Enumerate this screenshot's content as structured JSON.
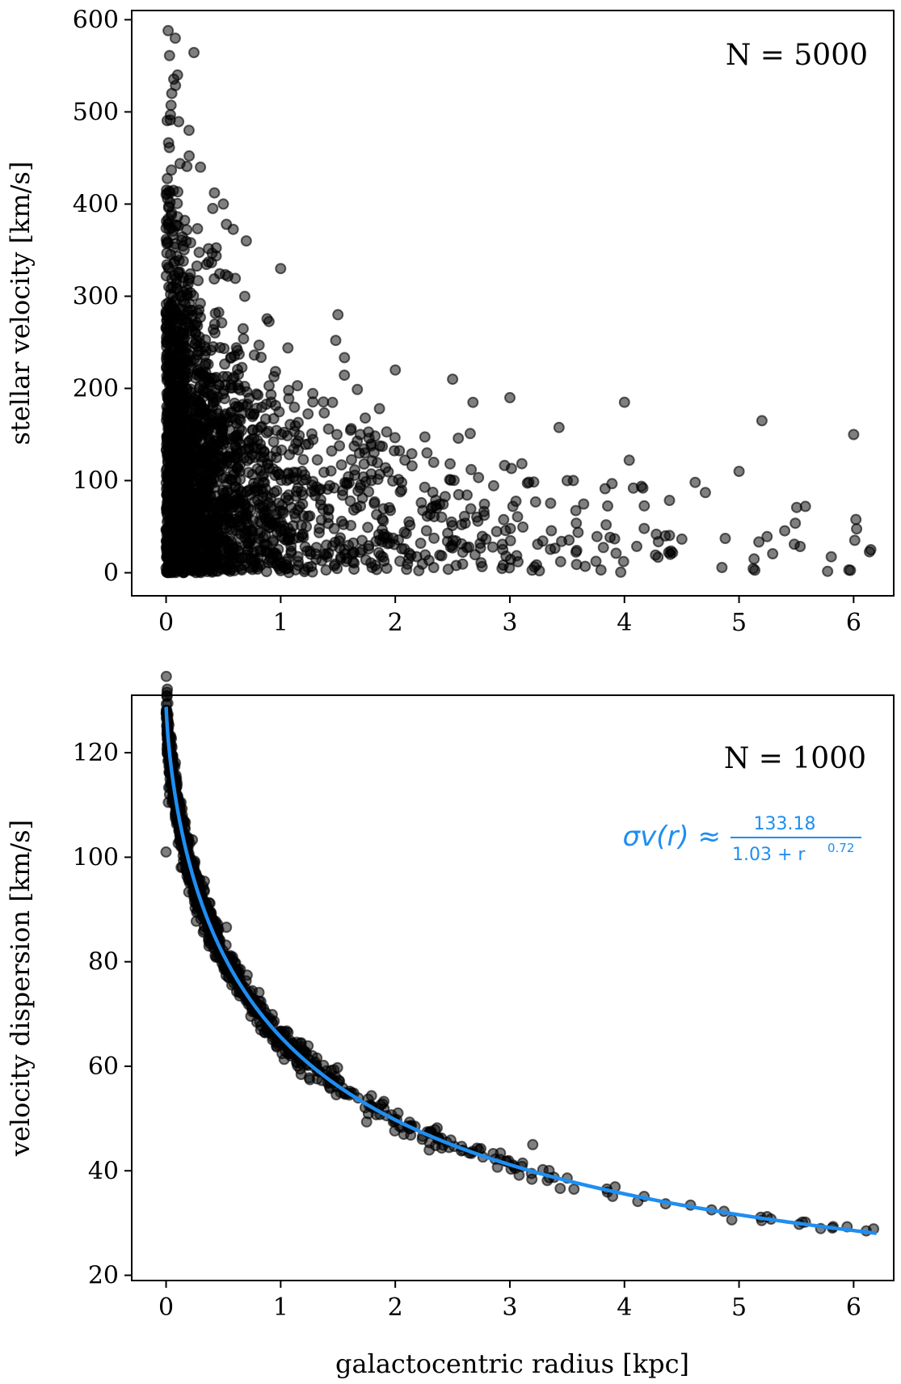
{
  "chart_data": [
    {
      "type": "scatter",
      "title": "",
      "xlabel": "",
      "ylabel": "stellar velocity [km/s]",
      "xlim": [
        -0.3,
        6.35
      ],
      "ylim": [
        -25,
        610
      ],
      "xticks": [
        0,
        1,
        2,
        3,
        4,
        5,
        6
      ],
      "yticks": [
        0,
        100,
        200,
        300,
        400,
        500,
        600
      ],
      "annotation": "N = 5000",
      "n_points": 5000,
      "marker_color": "#000000",
      "marker_alpha": 0.5,
      "trend": "velocity scatter decreases with radius; upper envelope ~580 km/s near r=0.1 falling to ~150 km/s at r=6",
      "samples": [
        {
          "x": 0.08,
          "y": 580
        },
        {
          "x": 0.1,
          "y": 540
        },
        {
          "x": 0.05,
          "y": 520
        },
        {
          "x": 0.2,
          "y": 480
        },
        {
          "x": 0.3,
          "y": 440
        },
        {
          "x": 0.5,
          "y": 400
        },
        {
          "x": 0.7,
          "y": 360
        },
        {
          "x": 1.0,
          "y": 330
        },
        {
          "x": 1.5,
          "y": 280
        },
        {
          "x": 2.0,
          "y": 220
        },
        {
          "x": 2.5,
          "y": 210
        },
        {
          "x": 3.0,
          "y": 190
        },
        {
          "x": 4.0,
          "y": 185
        },
        {
          "x": 5.2,
          "y": 165
        },
        {
          "x": 6.0,
          "y": 150
        },
        {
          "x": 0.0,
          "y": 5
        },
        {
          "x": 1.05,
          "y": 12
        },
        {
          "x": 4.4,
          "y": 20
        },
        {
          "x": 6.15,
          "y": 25
        },
        {
          "x": 3.5,
          "y": 100
        },
        {
          "x": 5.0,
          "y": 110
        }
      ]
    },
    {
      "type": "scatter",
      "title": "",
      "xlabel": "galactocentric radius [kpc]",
      "ylabel": "velocity dispersion [km/s]",
      "xlim": [
        -0.3,
        6.35
      ],
      "ylim": [
        19,
        131
      ],
      "xticks": [
        0,
        1,
        2,
        3,
        4,
        5,
        6
      ],
      "yticks": [
        20,
        40,
        60,
        80,
        100,
        120
      ],
      "annotation": "N = 1000",
      "n_points": 1000,
      "marker_color": "#000000",
      "marker_alpha": 0.5,
      "fit_color": "#1f8ef1",
      "fit": {
        "a": 133.18,
        "b": 1.03,
        "p": 0.72
      },
      "formula": {
        "lhs": "σv(r) ≈",
        "numerator": "133.18",
        "denominator": "1.03 + r",
        "exponent": "0.72"
      },
      "outliers": [
        {
          "x": 0.0,
          "y": 101
        },
        {
          "x": 0.02,
          "y": 110.5
        },
        {
          "x": 0.03,
          "y": 112
        },
        {
          "x": 3.2,
          "y": 45
        }
      ]
    }
  ]
}
